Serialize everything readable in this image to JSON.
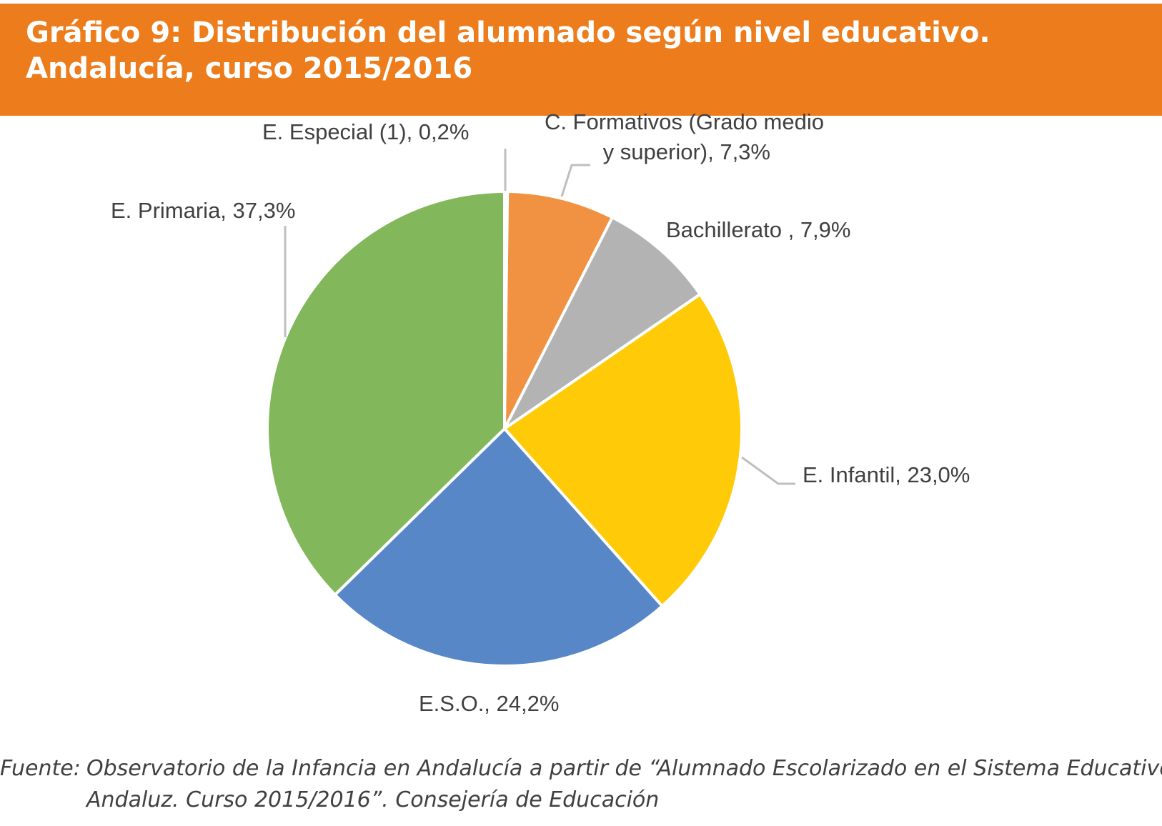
{
  "header": {
    "title_line1": "Gráfico 9: Distribución del alumnado según nivel educativo.",
    "title_line2": "Andalucía, curso 2015/2016"
  },
  "chart_data": {
    "type": "pie",
    "title": "Gráfico 9: Distribución del alumnado según nivel educativo. Andalucía, curso 2015/2016",
    "slices": [
      {
        "name": "E. Especial (1)",
        "value": 0.2,
        "color": "#A5A5A5",
        "label_lines": [
          "E. Especial (1), 0,2%"
        ]
      },
      {
        "name": "C. Formativos (Grado medio y superior)",
        "value": 7.3,
        "color": "#F09242",
        "label_lines": [
          "C. Formativos (Grado medio",
          "y superior), 7,3%"
        ]
      },
      {
        "name": "Bachillerato",
        "value": 7.9,
        "color": "#B3B3B3",
        "label_lines": [
          "Bachillerato , 7,9%"
        ]
      },
      {
        "name": "E. Infantil",
        "value": 23.0,
        "color": "#FFCA08",
        "label_lines": [
          "E. Infantil, 23,0%"
        ]
      },
      {
        "name": "E.S.O.",
        "value": 24.2,
        "color": "#5787C7",
        "label_lines": [
          "E.S.O., 24,2%"
        ]
      },
      {
        "name": "E. Primaria",
        "value": 37.3,
        "color": "#82B85B",
        "label_lines": [
          "E. Primaria, 37,3%"
        ]
      }
    ],
    "leader_color": "#BFBFBF",
    "border_color": "#ffffff"
  },
  "source": {
    "label": "Fuente:",
    "line1": "Observatorio de la Infancia en Andalucía a partir de “Alumnado Escolarizado en el Sistema Educativo",
    "line2": "Andaluz. Curso 2015/2016”. Consejería de Educación"
  }
}
